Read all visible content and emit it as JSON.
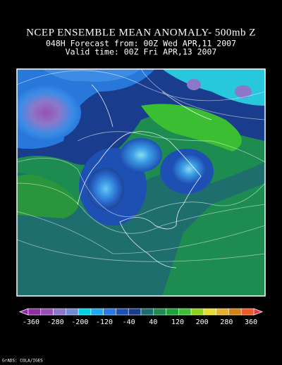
{
  "header": {
    "title": "NCEP ENSEMBLE MEAN ANOMALY- 500mb Z",
    "forecast": "048H Forecast from: 00Z Wed APR,11 2007",
    "valid": "Valid time: 00Z Fri APR,13 2007"
  },
  "legend": {
    "labels": [
      "-360",
      "-280",
      "-200",
      "-120",
      "-40",
      "40",
      "120",
      "200",
      "280",
      "360"
    ],
    "colors": [
      "#a01eb4",
      "#8c329c",
      "#9650b4",
      "#8c78c8",
      "#6e8cd2",
      "#00d2e6",
      "#1eaaf0",
      "#2878e6",
      "#1e50b4",
      "#1a3c8c",
      "#1a6e6e",
      "#1e8c50",
      "#1ea03c",
      "#3cbe32",
      "#8cd21e",
      "#e6dc32",
      "#e6af2d",
      "#d28214",
      "#f05a28",
      "#f03232"
    ]
  },
  "footer": "GrADS: COLA/IGES"
}
